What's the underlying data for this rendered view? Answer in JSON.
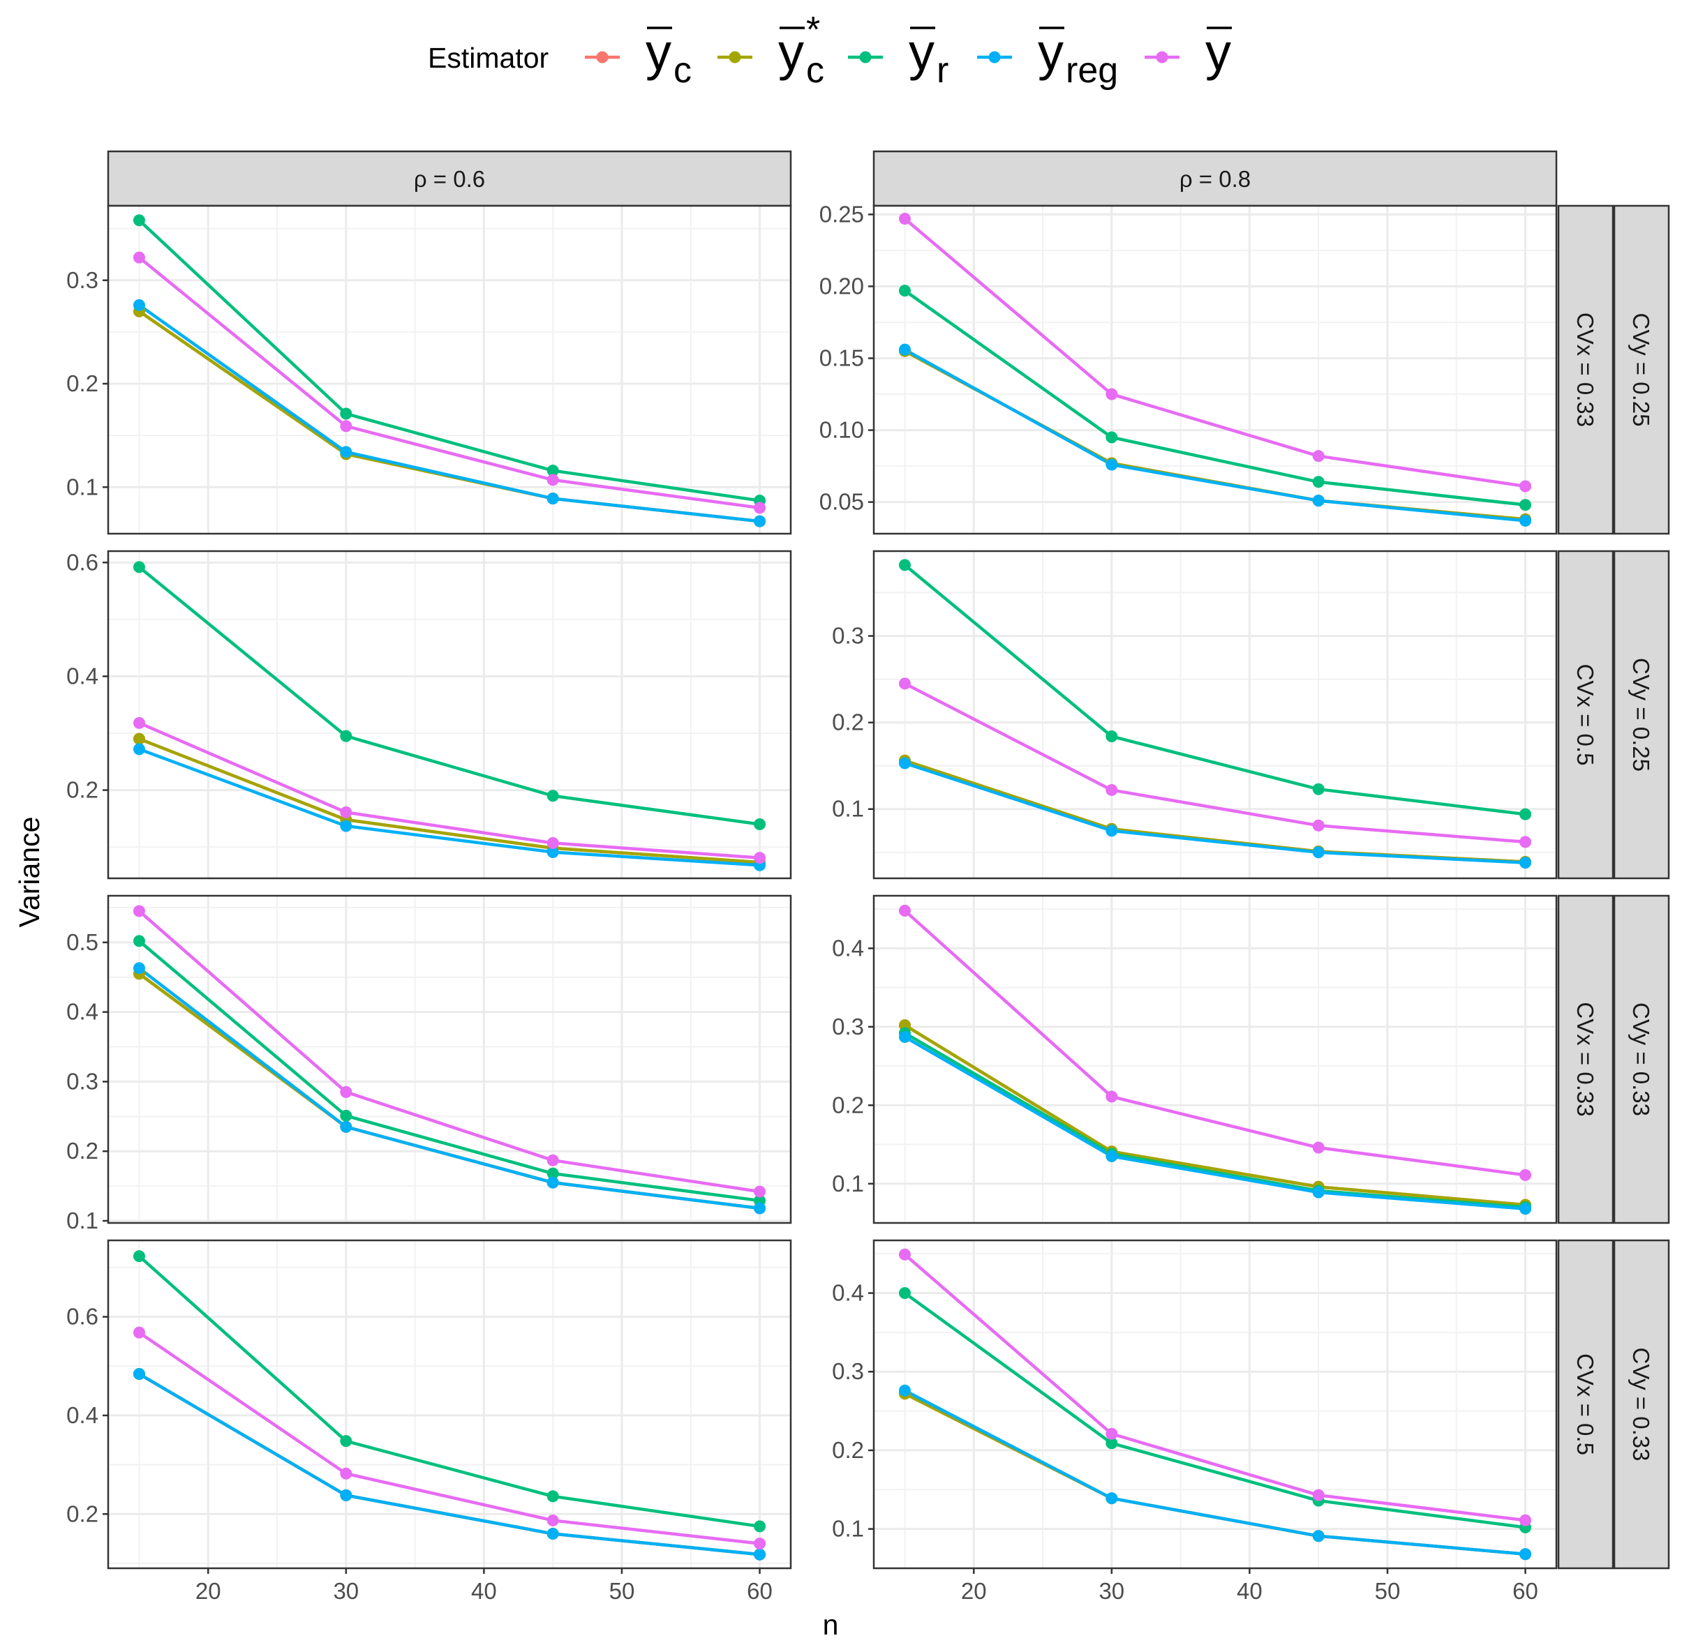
{
  "chart_data": {
    "type": "line",
    "xlabel": "n",
    "ylabel": "Variance",
    "x": [
      15,
      30,
      45,
      60
    ],
    "xlim": [
      12.75,
      62.25
    ],
    "xticks": [
      20,
      30,
      40,
      50,
      60
    ],
    "legend": {
      "title": "Estimator",
      "placement": "top",
      "entries": [
        {
          "key": "yc",
          "base": "y",
          "sub": "c",
          "sup": "",
          "color": "#F8766D"
        },
        {
          "key": "yc_star",
          "base": "y",
          "sub": "c",
          "sup": "*",
          "color": "#A3A500"
        },
        {
          "key": "yr",
          "base": "y",
          "sub": "r",
          "sup": "",
          "color": "#00BF7D"
        },
        {
          "key": "yreg",
          "base": "y",
          "sub": "reg",
          "sup": "",
          "color": "#00B0F6"
        },
        {
          "key": "ybar",
          "base": "y",
          "sub": "",
          "sup": "",
          "color": "#E76BF3"
        }
      ]
    },
    "column_strips": [
      "ρ = 0.6",
      "ρ = 0.8"
    ],
    "row_strips": [
      {
        "cvx": "CVx = 0.33",
        "cvy": "CVy = 0.25"
      },
      {
        "cvx": "CVx = 0.5",
        "cvy": "CVy = 0.25"
      },
      {
        "cvx": "CVx = 0.33",
        "cvy": "CVy = 0.33"
      },
      {
        "cvx": "CVx = 0.5",
        "cvy": "CVy = 0.33"
      }
    ],
    "grid": true,
    "panels": [
      {
        "row": 0,
        "col": 0,
        "ylim": [
          0.055,
          0.372
        ],
        "yticks": [
          0.1,
          0.2,
          0.3
        ],
        "ytick_labels": [
          "0.1",
          "0.2",
          "0.3"
        ],
        "series": [
          {
            "key": "yc",
            "values": [
              0.27,
              0.132,
              0.089,
              0.067
            ]
          },
          {
            "key": "yc_star",
            "values": [
              0.27,
              0.132,
              0.089,
              0.067
            ]
          },
          {
            "key": "yr",
            "values": [
              0.358,
              0.171,
              0.116,
              0.087
            ]
          },
          {
            "key": "yreg",
            "values": [
              0.276,
              0.134,
              0.089,
              0.067
            ]
          },
          {
            "key": "ybar",
            "values": [
              0.322,
              0.159,
              0.107,
              0.08
            ]
          }
        ]
      },
      {
        "row": 0,
        "col": 1,
        "ylim": [
          0.028,
          0.256
        ],
        "yticks": [
          0.05,
          0.1,
          0.15,
          0.2,
          0.25
        ],
        "ytick_labels": [
          "0.05",
          "0.10",
          "0.15",
          "0.20",
          "0.25"
        ],
        "series": [
          {
            "key": "yc",
            "values": [
              0.155,
              0.077,
              0.051,
              0.038
            ]
          },
          {
            "key": "yc_star",
            "values": [
              0.155,
              0.077,
              0.051,
              0.038
            ]
          },
          {
            "key": "yr",
            "values": [
              0.197,
              0.095,
              0.064,
              0.048
            ]
          },
          {
            "key": "yreg",
            "values": [
              0.156,
              0.076,
              0.051,
              0.037
            ]
          },
          {
            "key": "ybar",
            "values": [
              0.247,
              0.125,
              0.082,
              0.061
            ]
          }
        ]
      },
      {
        "row": 1,
        "col": 0,
        "ylim": [
          0.045,
          0.62
        ],
        "yticks": [
          0.2,
          0.4,
          0.6
        ],
        "ytick_labels": [
          "0.2",
          "0.4",
          "0.6"
        ],
        "series": [
          {
            "key": "yc",
            "values": [
              0.29,
              0.148,
              0.098,
              0.073
            ]
          },
          {
            "key": "yc_star",
            "values": [
              0.29,
              0.148,
              0.098,
              0.073
            ]
          },
          {
            "key": "yr",
            "values": [
              0.592,
              0.295,
              0.19,
              0.14
            ]
          },
          {
            "key": "yreg",
            "values": [
              0.272,
              0.137,
              0.091,
              0.068
            ]
          },
          {
            "key": "ybar",
            "values": [
              0.318,
              0.161,
              0.107,
              0.081
            ]
          }
        ]
      },
      {
        "row": 1,
        "col": 1,
        "ylim": [
          0.02,
          0.398
        ],
        "yticks": [
          0.1,
          0.2,
          0.3
        ],
        "ytick_labels": [
          "0.1",
          "0.2",
          "0.3"
        ],
        "series": [
          {
            "key": "yc",
            "values": [
              0.156,
              0.077,
              0.051,
              0.039
            ]
          },
          {
            "key": "yc_star",
            "values": [
              0.156,
              0.077,
              0.051,
              0.039
            ]
          },
          {
            "key": "yr",
            "values": [
              0.382,
              0.184,
              0.123,
              0.094
            ]
          },
          {
            "key": "yreg",
            "values": [
              0.153,
              0.075,
              0.05,
              0.038
            ]
          },
          {
            "key": "ybar",
            "values": [
              0.245,
              0.122,
              0.081,
              0.062
            ]
          }
        ]
      },
      {
        "row": 2,
        "col": 0,
        "ylim": [
          0.097,
          0.567
        ],
        "yticks": [
          0.1,
          0.2,
          0.3,
          0.4,
          0.5
        ],
        "ytick_labels": [
          "0.1",
          "0.2",
          "0.3",
          "0.4",
          "0.5"
        ],
        "series": [
          {
            "key": "yc",
            "values": [
              0.455,
              0.235,
              0.155,
              0.118
            ]
          },
          {
            "key": "yc_star",
            "values": [
              0.455,
              0.235,
              0.155,
              0.118
            ]
          },
          {
            "key": "yr",
            "values": [
              0.502,
              0.251,
              0.168,
              0.129
            ]
          },
          {
            "key": "yreg",
            "values": [
              0.463,
              0.235,
              0.155,
              0.118
            ]
          },
          {
            "key": "ybar",
            "values": [
              0.545,
              0.285,
              0.187,
              0.142
            ]
          }
        ]
      },
      {
        "row": 2,
        "col": 1,
        "ylim": [
          0.05,
          0.467
        ],
        "yticks": [
          0.1,
          0.2,
          0.3,
          0.4
        ],
        "ytick_labels": [
          "0.1",
          "0.2",
          "0.3",
          "0.4"
        ],
        "series": [
          {
            "key": "yc",
            "values": [
              0.302,
              0.141,
              0.096,
              0.073
            ]
          },
          {
            "key": "yc_star",
            "values": [
              0.302,
              0.141,
              0.096,
              0.073
            ]
          },
          {
            "key": "yr",
            "values": [
              0.292,
              0.138,
              0.091,
              0.07
            ]
          },
          {
            "key": "yreg",
            "values": [
              0.287,
              0.135,
              0.089,
              0.068
            ]
          },
          {
            "key": "ybar",
            "values": [
              0.448,
              0.211,
              0.146,
              0.111
            ]
          }
        ]
      },
      {
        "row": 3,
        "col": 0,
        "ylim": [
          0.09,
          0.755
        ],
        "yticks": [
          0.2,
          0.4,
          0.6
        ],
        "ytick_labels": [
          "0.2",
          "0.4",
          "0.6"
        ],
        "series": [
          {
            "key": "yc",
            "values": [
              0.484,
              0.238,
              0.16,
              0.118
            ]
          },
          {
            "key": "yc_star",
            "values": [
              0.484,
              0.238,
              0.16,
              0.118
            ]
          },
          {
            "key": "yr",
            "values": [
              0.723,
              0.348,
              0.236,
              0.175
            ]
          },
          {
            "key": "yreg",
            "values": [
              0.484,
              0.238,
              0.16,
              0.118
            ]
          },
          {
            "key": "ybar",
            "values": [
              0.568,
              0.282,
              0.187,
              0.14
            ]
          }
        ]
      },
      {
        "row": 3,
        "col": 1,
        "ylim": [
          0.05,
          0.467
        ],
        "yticks": [
          0.1,
          0.2,
          0.3,
          0.4
        ],
        "ytick_labels": [
          "0.1",
          "0.2",
          "0.3",
          "0.4"
        ],
        "series": [
          {
            "key": "yc",
            "values": [
              0.272,
              0.139,
              0.091,
              0.068
            ]
          },
          {
            "key": "yc_star",
            "values": [
              0.272,
              0.139,
              0.091,
              0.068
            ]
          },
          {
            "key": "yr",
            "values": [
              0.4,
              0.209,
              0.136,
              0.102
            ]
          },
          {
            "key": "yreg",
            "values": [
              0.276,
              0.139,
              0.091,
              0.068
            ]
          },
          {
            "key": "ybar",
            "values": [
              0.449,
              0.221,
              0.143,
              0.111
            ]
          }
        ]
      }
    ]
  }
}
